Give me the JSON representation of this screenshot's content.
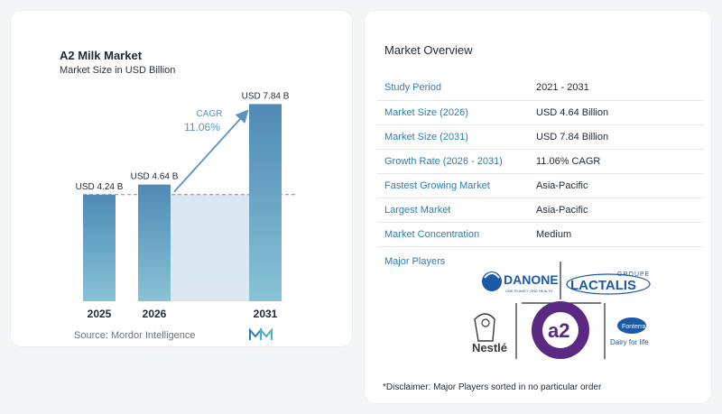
{
  "chart_data": {
    "type": "bar",
    "title": "A2 Milk Market",
    "subtitle": "Market Size in USD Billion",
    "categories": [
      "2025",
      "2026",
      "2031"
    ],
    "values": [
      4.24,
      4.64,
      7.84
    ],
    "data_labels": [
      "USD 4.24 B",
      "USD 4.64 B",
      "USD 7.84 B"
    ],
    "ylim": [
      0,
      8.5
    ],
    "cagr_label": "CAGR",
    "cagr_value": "11.06%",
    "grid": false,
    "colors": {
      "bar_top": "#4f8ab5",
      "bar_bottom": "#88c3d6",
      "band": "#dce8f1",
      "arrow": "#5b93be",
      "cagr": "#5b93be"
    }
  },
  "source": "Source:  Mordor Intelligence",
  "overview": {
    "title": "Market Overview",
    "rows": [
      {
        "key": "Study Period",
        "value": "2021 - 2031"
      },
      {
        "key": "Market Size (2026)",
        "value": "USD 4.64 Billion"
      },
      {
        "key": "Market Size (2031)",
        "value": "USD 7.84 Billion"
      },
      {
        "key": "Growth Rate (2026 - 2031)",
        "value": "11.06% CAGR"
      },
      {
        "key": "Fastest Growing Market",
        "value": "Asia-Pacific"
      },
      {
        "key": "Largest Market",
        "value": "Asia-Pacific"
      },
      {
        "key": "Market Concentration",
        "value": "Medium"
      }
    ]
  },
  "players": {
    "label": "Major Players",
    "danone": "DANONE",
    "danone_tag": "ONE PLANET. ONE HEALTH",
    "lactalis_groupe": "GROUPE",
    "lactalis": "LACTALIS",
    "nestle": "Nestlé",
    "a2": "a2",
    "a2_ring": "THE a2 MILK COMPANY · FEEL THE DIFFERENCE",
    "fonterra": "Fonterra",
    "fonterra_tag": "Dairy for life"
  },
  "disclaimer": "*Disclaimer: Major Players sorted in no particular order"
}
